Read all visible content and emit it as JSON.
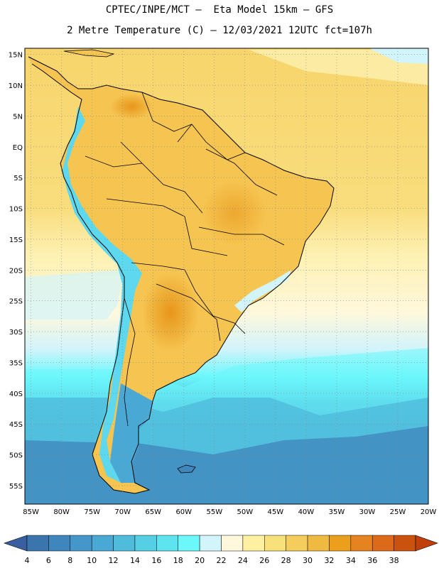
{
  "header": {
    "line1": "CPTEC/INPE/MCT –  Eta Model 15km – GFS",
    "line2": "2 Metre Temperature (C) – 12/03/2021 12UTC fct=107h"
  },
  "map": {
    "lat_labels": [
      "15N",
      "10N",
      "5N",
      "EQ",
      "5S",
      "10S",
      "15S",
      "20S",
      "25S",
      "30S",
      "35S",
      "40S",
      "45S",
      "50S",
      "55S"
    ],
    "lon_labels": [
      "85W",
      "80W",
      "75W",
      "70W",
      "65W",
      "60W",
      "55W",
      "50W",
      "45W",
      "40W",
      "35W",
      "30W",
      "25W",
      "20W"
    ],
    "extent": {
      "lon_min": -86,
      "lon_max": -20,
      "lat_min": -58,
      "lat_max": 16
    }
  },
  "colorbar": {
    "values": [
      "4",
      "6",
      "8",
      "10",
      "12",
      "14",
      "16",
      "18",
      "20",
      "22",
      "24",
      "26",
      "28",
      "30",
      "32",
      "34",
      "36",
      "38"
    ],
    "colors": [
      "#3a76ad",
      "#3f86bc",
      "#4597c9",
      "#4aa8d5",
      "#4fbcdc",
      "#55cfe3",
      "#5ee4ef",
      "#6cf7fb",
      "#d2f4fb",
      "#fff8dc",
      "#fdf0a0",
      "#f8e07a",
      "#f4cd5d",
      "#efba42",
      "#ec9f1c",
      "#e48320",
      "#dd6a1a",
      "#c9520e"
    ],
    "under_color": "#3a5fa0",
    "over_color": "#c0400c"
  },
  "colors": {
    "ocean_warm": "#f7d26a",
    "land": "#f5c64f",
    "frame": "#000000"
  }
}
